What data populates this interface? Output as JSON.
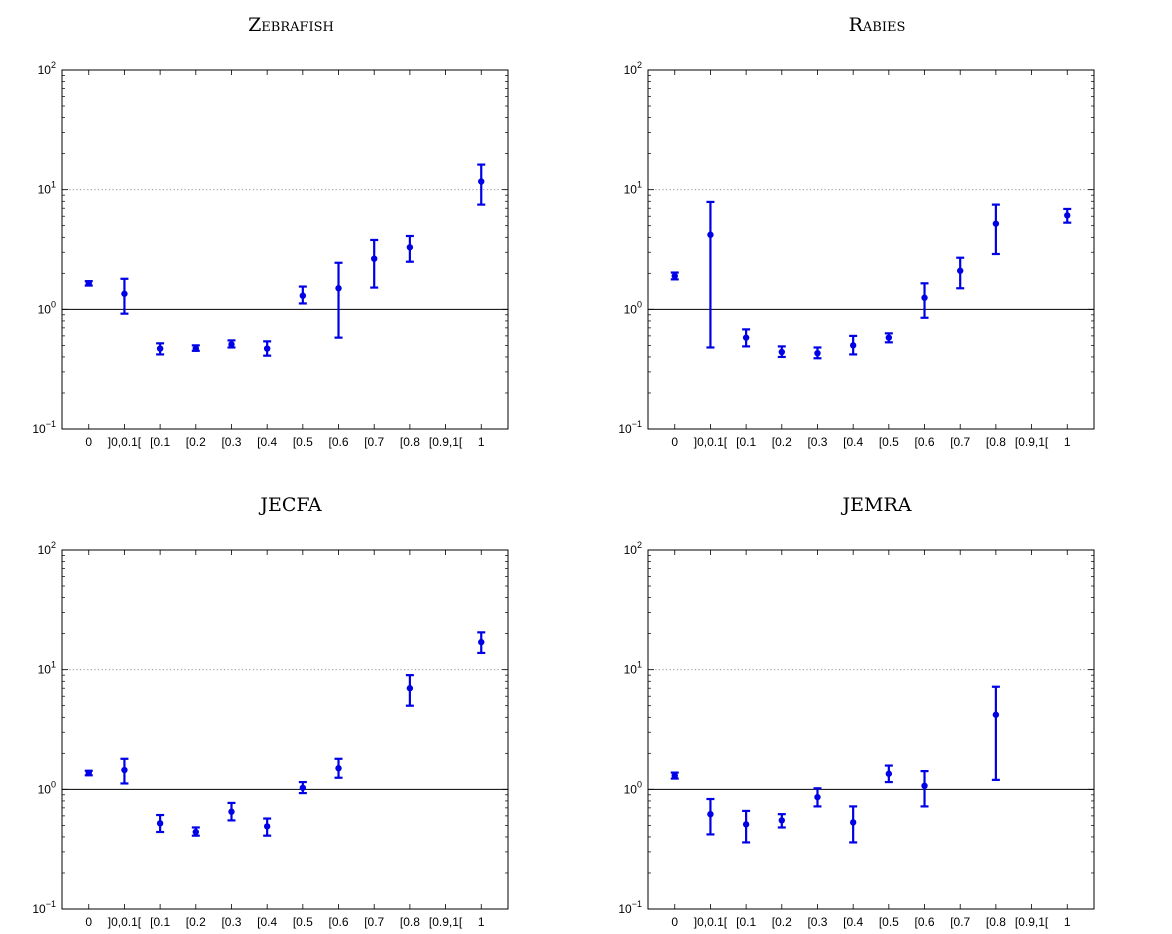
{
  "chart_data": [
    {
      "type": "scatter",
      "title": "Zebrafish",
      "yscale": "log",
      "ylim": [
        0.1,
        100
      ],
      "yticks": [
        {
          "base": "10",
          "exp": "−1",
          "value": 0.1
        },
        {
          "base": "10",
          "exp": "0",
          "value": 1
        },
        {
          "base": "10",
          "exp": "1",
          "value": 10
        },
        {
          "base": "10",
          "exp": "2",
          "value": 100
        }
      ],
      "categories": [
        "0",
        "]0,0.1[",
        "[0.1",
        "[0.2",
        "[0.3",
        "[0.4",
        "[0.5",
        "[0.6",
        "[0.7",
        "[0.8",
        "[0.9,1[",
        "1"
      ],
      "series": [
        {
          "color": "#0000e6",
          "points": [
            {
              "x": "0",
              "y": 1.65,
              "low": 1.58,
              "high": 1.72
            },
            {
              "x": "]0,0.1[",
              "y": 1.35,
              "low": 0.92,
              "high": 1.8
            },
            {
              "x": "[0.1",
              "y": 0.47,
              "low": 0.42,
              "high": 0.52
            },
            {
              "x": "[0.2",
              "y": 0.47,
              "low": 0.45,
              "high": 0.5
            },
            {
              "x": "[0.3",
              "y": 0.51,
              "low": 0.48,
              "high": 0.55
            },
            {
              "x": "[0.4",
              "y": 0.47,
              "low": 0.41,
              "high": 0.54
            },
            {
              "x": "[0.5",
              "y": 1.3,
              "low": 1.12,
              "high": 1.55
            },
            {
              "x": "[0.6",
              "y": 1.5,
              "low": 0.58,
              "high": 2.45
            },
            {
              "x": "[0.7",
              "y": 2.65,
              "low": 1.52,
              "high": 3.8
            },
            {
              "x": "[0.8",
              "y": 3.3,
              "low": 2.5,
              "high": 4.1
            },
            {
              "x": "1",
              "y": 11.7,
              "low": 7.5,
              "high": 16.2
            }
          ]
        }
      ],
      "reference_line": 1,
      "grid": "dotted horizontal at major ticks"
    },
    {
      "type": "scatter",
      "title": "Rabies",
      "yscale": "log",
      "ylim": [
        0.1,
        100
      ],
      "yticks": [
        {
          "base": "10",
          "exp": "−1",
          "value": 0.1
        },
        {
          "base": "10",
          "exp": "0",
          "value": 1
        },
        {
          "base": "10",
          "exp": "1",
          "value": 10
        },
        {
          "base": "10",
          "exp": "2",
          "value": 100
        }
      ],
      "categories": [
        "0",
        "]0,0.1[",
        "[0.1",
        "[0.2",
        "[0.3",
        "[0.4",
        "[0.5",
        "[0.6",
        "[0.7",
        "[0.8",
        "[0.9,1[",
        "1"
      ],
      "series": [
        {
          "color": "#0000e6",
          "points": [
            {
              "x": "0",
              "y": 1.9,
              "low": 1.78,
              "high": 2.03
            },
            {
              "x": "]0,0.1[",
              "y": 4.2,
              "low": 0.48,
              "high": 7.9
            },
            {
              "x": "[0.1",
              "y": 0.58,
              "low": 0.49,
              "high": 0.68
            },
            {
              "x": "[0.2",
              "y": 0.44,
              "low": 0.4,
              "high": 0.49
            },
            {
              "x": "[0.3",
              "y": 0.43,
              "low": 0.39,
              "high": 0.48
            },
            {
              "x": "[0.4",
              "y": 0.5,
              "low": 0.42,
              "high": 0.6
            },
            {
              "x": "[0.5",
              "y": 0.58,
              "low": 0.53,
              "high": 0.63
            },
            {
              "x": "[0.6",
              "y": 1.25,
              "low": 0.85,
              "high": 1.65
            },
            {
              "x": "[0.7",
              "y": 2.1,
              "low": 1.5,
              "high": 2.7
            },
            {
              "x": "[0.8",
              "y": 5.2,
              "low": 2.9,
              "high": 7.5
            },
            {
              "x": "1",
              "y": 6.1,
              "low": 5.3,
              "high": 6.9
            }
          ]
        }
      ],
      "reference_line": 1,
      "grid": "dotted horizontal at major ticks"
    },
    {
      "type": "scatter",
      "title": "JECFA",
      "yscale": "log",
      "ylim": [
        0.1,
        100
      ],
      "yticks": [
        {
          "base": "10",
          "exp": "−1",
          "value": 0.1
        },
        {
          "base": "10",
          "exp": "0",
          "value": 1
        },
        {
          "base": "10",
          "exp": "1",
          "value": 10
        },
        {
          "base": "10",
          "exp": "2",
          "value": 100
        }
      ],
      "categories": [
        "0",
        "]0,0.1[",
        "[0.1",
        "[0.2",
        "[0.3",
        "[0.4",
        "[0.5",
        "[0.6",
        "[0.7",
        "[0.8",
        "[0.9,1[",
        "1"
      ],
      "series": [
        {
          "color": "#0000e6",
          "points": [
            {
              "x": "0",
              "y": 1.37,
              "low": 1.31,
              "high": 1.43
            },
            {
              "x": "]0,0.1[",
              "y": 1.45,
              "low": 1.12,
              "high": 1.8
            },
            {
              "x": "[0.1",
              "y": 0.52,
              "low": 0.44,
              "high": 0.61
            },
            {
              "x": "[0.2",
              "y": 0.44,
              "low": 0.41,
              "high": 0.48
            },
            {
              "x": "[0.3",
              "y": 0.65,
              "low": 0.55,
              "high": 0.77
            },
            {
              "x": "[0.4",
              "y": 0.49,
              "low": 0.41,
              "high": 0.57
            },
            {
              "x": "[0.5",
              "y": 1.03,
              "low": 0.93,
              "high": 1.15
            },
            {
              "x": "[0.6",
              "y": 1.5,
              "low": 1.25,
              "high": 1.8
            },
            {
              "x": "[0.8",
              "y": 7.0,
              "low": 5.0,
              "high": 9.0
            },
            {
              "x": "1",
              "y": 17.0,
              "low": 13.8,
              "high": 20.5
            }
          ]
        }
      ],
      "reference_line": 1,
      "grid": "dotted horizontal at major ticks"
    },
    {
      "type": "scatter",
      "title": "JEMRA",
      "yscale": "log",
      "ylim": [
        0.1,
        100
      ],
      "yticks": [
        {
          "base": "10",
          "exp": "−1",
          "value": 0.1
        },
        {
          "base": "10",
          "exp": "0",
          "value": 1
        },
        {
          "base": "10",
          "exp": "1",
          "value": 10
        },
        {
          "base": "10",
          "exp": "2",
          "value": 100
        }
      ],
      "categories": [
        "0",
        "]0,0.1[",
        "[0.1",
        "[0.2",
        "[0.3",
        "[0.4",
        "[0.5",
        "[0.6",
        "[0.7",
        "[0.8",
        "[0.9,1[",
        "1"
      ],
      "series": [
        {
          "color": "#0000e6",
          "points": [
            {
              "x": "0",
              "y": 1.3,
              "low": 1.23,
              "high": 1.38
            },
            {
              "x": "]0,0.1[",
              "y": 0.62,
              "low": 0.42,
              "high": 0.83
            },
            {
              "x": "[0.1",
              "y": 0.51,
              "low": 0.36,
              "high": 0.66
            },
            {
              "x": "[0.2",
              "y": 0.55,
              "low": 0.48,
              "high": 0.62
            },
            {
              "x": "[0.3",
              "y": 0.86,
              "low": 0.72,
              "high": 1.02
            },
            {
              "x": "[0.4",
              "y": 0.53,
              "low": 0.36,
              "high": 0.72
            },
            {
              "x": "[0.5",
              "y": 1.35,
              "low": 1.15,
              "high": 1.58
            },
            {
              "x": "[0.6",
              "y": 1.07,
              "low": 0.72,
              "high": 1.42
            },
            {
              "x": "[0.8",
              "y": 4.2,
              "low": 1.2,
              "high": 7.2
            }
          ]
        }
      ],
      "reference_line": 1,
      "grid": "dotted horizontal at major ticks"
    }
  ]
}
